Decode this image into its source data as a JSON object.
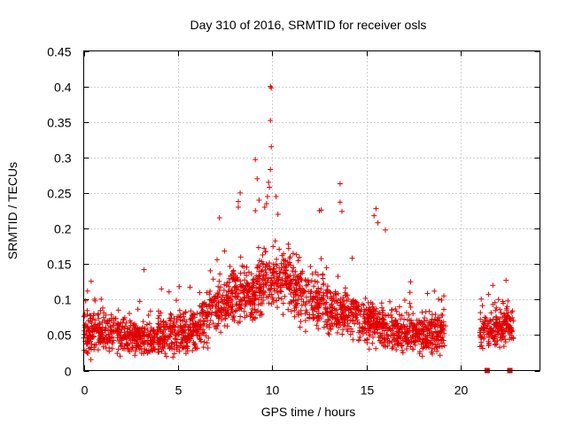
{
  "chart_data": {
    "type": "scatter",
    "title": "Day 310 of 2016, SRMTID for receiver osls",
    "xlabel": "GPS time / hours",
    "ylabel": "SRMTID / TECUs",
    "xlim": [
      0,
      24.2
    ],
    "ylim": [
      0,
      0.45
    ],
    "xticks": [
      0,
      5,
      10,
      15,
      20
    ],
    "xtick_labels": [
      "0",
      "5",
      "10",
      "15",
      "20"
    ],
    "yticks": [
      0,
      0.05,
      0.1,
      0.15,
      0.2,
      0.25,
      0.3,
      0.35,
      0.4,
      0.45
    ],
    "ytick_labels": [
      "0",
      "0.05",
      "0.1",
      "0.15",
      "0.2",
      "0.25",
      "0.3",
      "0.35",
      "0.4",
      "0.45"
    ],
    "grid": true,
    "marker": "plus",
    "series_color": "#e00000",
    "series": [
      {
        "name": "SRMTID",
        "segments": [
          {
            "x_start": 0.0,
            "x_end": 19.2,
            "baseline": [
              [
                0,
                0.055
              ],
              [
                2,
                0.05
              ],
              [
                3.5,
                0.045
              ],
              [
                5,
                0.05
              ],
              [
                6,
                0.06
              ],
              [
                7,
                0.09
              ],
              [
                8,
                0.11
              ],
              [
                9,
                0.11
              ],
              [
                10,
                0.13
              ],
              [
                11,
                0.12
              ],
              [
                12,
                0.1
              ],
              [
                13,
                0.09
              ],
              [
                14,
                0.08
              ],
              [
                15,
                0.07
              ],
              [
                16,
                0.06
              ],
              [
                17,
                0.055
              ],
              [
                18,
                0.05
              ],
              [
                19.2,
                0.055
              ]
            ],
            "spread": 0.022
          },
          {
            "x_start": 21.0,
            "x_end": 22.8,
            "baseline": [
              [
                21.0,
                0.055
              ],
              [
                22.8,
                0.065
              ]
            ],
            "spread": 0.02
          }
        ],
        "notable_points": [
          {
            "x": 9.9,
            "y": 0.4
          },
          {
            "x": 9.95,
            "y": 0.398
          },
          {
            "x": 9.9,
            "y": 0.352
          },
          {
            "x": 9.95,
            "y": 0.315
          },
          {
            "x": 9.1,
            "y": 0.297
          },
          {
            "x": 9.9,
            "y": 0.283
          },
          {
            "x": 9.2,
            "y": 0.27
          },
          {
            "x": 9.8,
            "y": 0.265
          },
          {
            "x": 9.85,
            "y": 0.258
          },
          {
            "x": 8.3,
            "y": 0.25
          },
          {
            "x": 8.2,
            "y": 0.238
          },
          {
            "x": 9.75,
            "y": 0.245
          },
          {
            "x": 10.2,
            "y": 0.245
          },
          {
            "x": 9.3,
            "y": 0.24
          },
          {
            "x": 9.7,
            "y": 0.235
          },
          {
            "x": 8.2,
            "y": 0.23
          },
          {
            "x": 9.6,
            "y": 0.23
          },
          {
            "x": 9.1,
            "y": 0.225
          },
          {
            "x": 7.2,
            "y": 0.215
          },
          {
            "x": 10.3,
            "y": 0.22
          },
          {
            "x": 13.6,
            "y": 0.263
          },
          {
            "x": 13.6,
            "y": 0.237
          },
          {
            "x": 13.7,
            "y": 0.224
          },
          {
            "x": 12.5,
            "y": 0.225
          },
          {
            "x": 12.6,
            "y": 0.226
          },
          {
            "x": 15.5,
            "y": 0.228
          },
          {
            "x": 15.4,
            "y": 0.218
          },
          {
            "x": 15.6,
            "y": 0.208
          },
          {
            "x": 16.0,
            "y": 0.198
          },
          {
            "x": 3.2,
            "y": 0.142
          },
          {
            "x": 22.4,
            "y": 0.127
          },
          {
            "x": 22.0,
            "y": 0.1
          },
          {
            "x": 22.5,
            "y": 0.098
          },
          {
            "x": 21.7,
            "y": 0.093
          },
          {
            "x": 0.2,
            "y": 0.112
          },
          {
            "x": 0.1,
            "y": 0.098
          },
          {
            "x": 18.6,
            "y": 0.112
          },
          {
            "x": 19.1,
            "y": 0.105
          },
          {
            "x": 17.3,
            "y": 0.11
          }
        ],
        "boxes": [
          {
            "x": 21.4,
            "y": 0.0
          },
          {
            "x": 22.6,
            "y": 0.0
          }
        ]
      }
    ]
  }
}
